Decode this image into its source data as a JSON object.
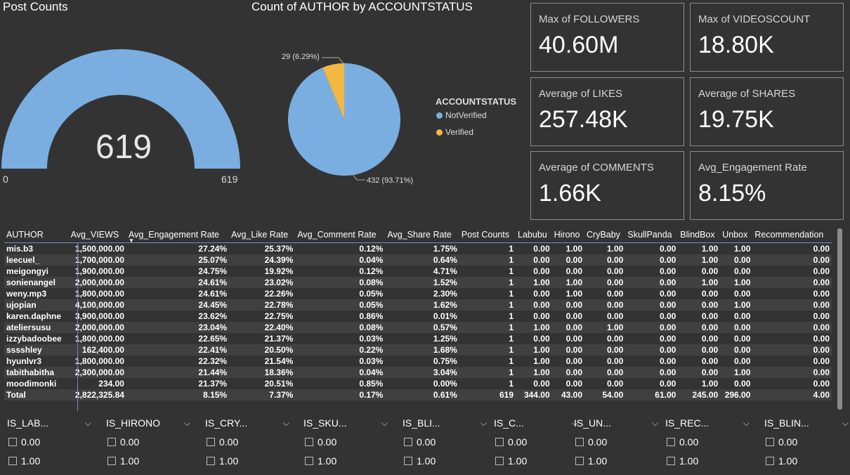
{
  "gauge": {
    "title": "Post Counts",
    "value": "619",
    "min": "0",
    "max": "619",
    "fill_fraction": 1.0,
    "color": "#7aaee0"
  },
  "pie": {
    "title": "Count of AUTHOR by ACCOUNTSTATUS",
    "legend_title": "ACCOUNTSTATUS",
    "slices": [
      {
        "label": "NotVerified",
        "value": 432,
        "data_label": "432 (93.71%)",
        "color": "#7aaee0"
      },
      {
        "label": "Verified",
        "value": 29,
        "data_label": "29 (6.29%)",
        "color": "#f2b843"
      }
    ]
  },
  "cards": [
    {
      "label": "Max of FOLLOWERS",
      "value": "40.60M"
    },
    {
      "label": "Max of VIDEOSCOUNT",
      "value": "18.80K"
    },
    {
      "label": "Average of LIKES",
      "value": "257.48K"
    },
    {
      "label": "Average of SHARES",
      "value": "19.75K"
    },
    {
      "label": "Average of COMMENTS",
      "value": "1.66K"
    },
    {
      "label": "Avg_Engagement Rate",
      "value": "8.15%"
    }
  ],
  "table": {
    "columns": [
      "AUTHOR",
      "Avg_VIEWS",
      "Avg_Engagement Rate",
      "Avg_Like Rate",
      "Avg_Comment Rate",
      "Avg_Share Rate",
      "Post Counts",
      "Labubu",
      "Hirono",
      "CryBaby",
      "SkullPanda",
      "BlindBox",
      "Unbox",
      "Recommendation"
    ],
    "sorted_column": "Avg_Engagement Rate",
    "rows": [
      [
        "mis.b3",
        "1,500,000.00",
        "27.24%",
        "25.37%",
        "0.12%",
        "1.75%",
        "1",
        "0.00",
        "1.00",
        "1.00",
        "0.00",
        "1.00",
        "1.00",
        "0.00"
      ],
      [
        "leecuel_",
        "1,700,000.00",
        "25.07%",
        "24.39%",
        "0.04%",
        "0.64%",
        "1",
        "0.00",
        "0.00",
        "0.00",
        "0.00",
        "1.00",
        "0.00",
        "0.00"
      ],
      [
        "meigongyi",
        "1,900,000.00",
        "24.75%",
        "19.92%",
        "0.12%",
        "4.71%",
        "1",
        "0.00",
        "0.00",
        "0.00",
        "0.00",
        "0.00",
        "0.00",
        "0.00"
      ],
      [
        "sonienangel",
        "2,000,000.00",
        "24.61%",
        "23.02%",
        "0.08%",
        "1.52%",
        "1",
        "1.00",
        "1.00",
        "0.00",
        "0.00",
        "1.00",
        "1.00",
        "0.00"
      ],
      [
        "weny.mp3",
        "1,800,000.00",
        "24.61%",
        "22.26%",
        "0.05%",
        "2.30%",
        "1",
        "0.00",
        "1.00",
        "0.00",
        "0.00",
        "0.00",
        "0.00",
        "0.00"
      ],
      [
        "ujopian",
        "4,100,000.00",
        "24.45%",
        "22.78%",
        "0.05%",
        "1.62%",
        "1",
        "0.00",
        "0.00",
        "0.00",
        "0.00",
        "0.00",
        "1.00",
        "0.00"
      ],
      [
        "karen.daphne",
        "3,900,000.00",
        "23.62%",
        "22.75%",
        "0.86%",
        "0.01%",
        "1",
        "0.00",
        "0.00",
        "0.00",
        "0.00",
        "0.00",
        "0.00",
        "0.00"
      ],
      [
        "ateliersusu",
        "2,000,000.00",
        "23.04%",
        "22.40%",
        "0.08%",
        "0.57%",
        "1",
        "1.00",
        "0.00",
        "1.00",
        "0.00",
        "0.00",
        "0.00",
        "0.00"
      ],
      [
        "izzybadoobee",
        "1,800,000.00",
        "22.65%",
        "21.37%",
        "0.03%",
        "1.25%",
        "1",
        "0.00",
        "0.00",
        "0.00",
        "0.00",
        "0.00",
        "0.00",
        "0.00"
      ],
      [
        "sssshley",
        "162,400.00",
        "22.41%",
        "20.50%",
        "0.22%",
        "1.68%",
        "1",
        "1.00",
        "0.00",
        "0.00",
        "0.00",
        "0.00",
        "0.00",
        "0.00"
      ],
      [
        "hyunlvr3",
        "1,800,000.00",
        "22.32%",
        "21.54%",
        "0.03%",
        "0.75%",
        "1",
        "1.00",
        "0.00",
        "0.00",
        "0.00",
        "0.00",
        "0.00",
        "0.00"
      ],
      [
        "tabithabitha",
        "2,300,000.00",
        "21.44%",
        "18.36%",
        "0.04%",
        "3.04%",
        "1",
        "1.00",
        "0.00",
        "0.00",
        "0.00",
        "0.00",
        "1.00",
        "0.00"
      ],
      [
        "moodimonki",
        "234.00",
        "21.37%",
        "20.51%",
        "0.85%",
        "0.00%",
        "1",
        "0.00",
        "0.00",
        "0.00",
        "0.00",
        "1.00",
        "0.00",
        "0.00"
      ]
    ],
    "total": [
      "Total",
      "2,822,325.84",
      "8.15%",
      "7.37%",
      "0.17%",
      "0.61%",
      "619",
      "344.00",
      "43.00",
      "54.00",
      "61.00",
      "245.00",
      "296.00",
      "4.00"
    ]
  },
  "slicers": [
    {
      "title": "IS_LAB...",
      "options": [
        "0.00",
        "1.00"
      ]
    },
    {
      "title": "IS_HIRONO",
      "options": [
        "0.00",
        "1.00"
      ]
    },
    {
      "title": "IS_CRY...",
      "options": [
        "0.00",
        "1.00"
      ]
    },
    {
      "title": "IS_SKU...",
      "options": [
        "0.00",
        "1.00"
      ]
    },
    {
      "title": "IS_BLI...",
      "options": [
        "0.00",
        "1.00"
      ]
    },
    {
      "title": "IS_C...",
      "options": [
        "0.00",
        "1.00"
      ]
    },
    {
      "title": "IS_UN...",
      "options": [
        "0.00",
        "1.00"
      ]
    },
    {
      "title": "IS_REC...",
      "options": [
        "0.00",
        "1.00"
      ]
    },
    {
      "title": "IS_BLIN...",
      "options": [
        "0.00",
        "1.00"
      ]
    }
  ],
  "icons": {
    "chevron": "chevron-down-icon",
    "sort": "sort-desc-icon",
    "checkbox": "checkbox-icon"
  }
}
